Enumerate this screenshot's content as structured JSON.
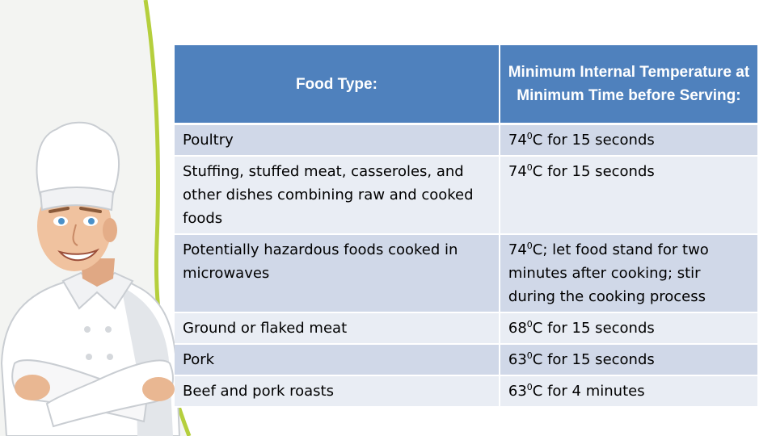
{
  "table": {
    "headers": [
      "Food Type:",
      "Minimum Internal Temperature at Minimum Time before Serving:"
    ],
    "rows": [
      {
        "food": "Poultry",
        "temp": "74",
        "deg": "0",
        "rest": "C for 15 seconds"
      },
      {
        "food": "Stuffing, stuffed meat, casseroles, and other dishes combining raw and cooked foods",
        "temp": "74",
        "deg": "0",
        "rest": "C for 15 seconds"
      },
      {
        "food": "Potentially hazardous foods cooked in microwaves",
        "temp": "74",
        "deg": "0",
        "rest": "C; let food stand for two minutes after cooking; stir during the cooking process"
      },
      {
        "food": "Ground or flaked meat",
        "temp": "68",
        "deg": "0",
        "rest": "C for 15 seconds"
      },
      {
        "food": "Pork",
        "temp": "63",
        "deg": "0",
        "rest": "C for 15 seconds"
      },
      {
        "food": "Beef and pork roasts",
        "temp": "63",
        "deg": "0",
        "rest": "C for 4 minutes"
      }
    ]
  },
  "colors": {
    "header_bg": "#4f81bd",
    "row_odd": "#d0d8e8",
    "row_even": "#e9edf4",
    "accent_curve": "#b5cf3d",
    "panel_bg": "#f3f4f2"
  },
  "illustration": "chef-illustration"
}
